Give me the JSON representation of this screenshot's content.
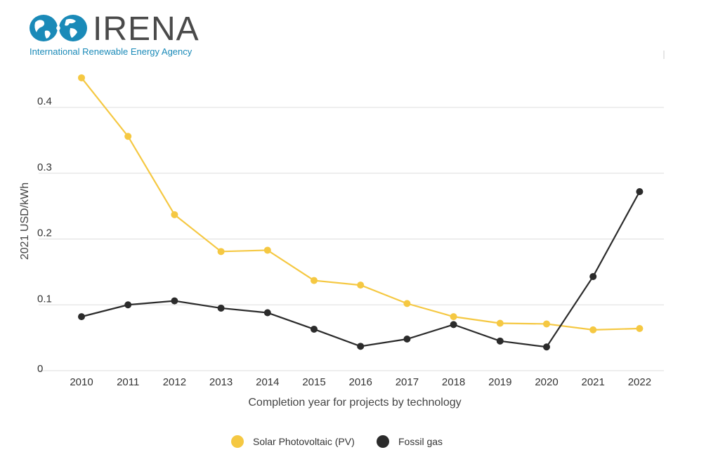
{
  "logo": {
    "name": "IRENA",
    "tagline": "International Renewable Energy Agency",
    "color": "#1a8ab8"
  },
  "chart_data": {
    "type": "line",
    "title": "",
    "xlabel": "Completion year for projects by technology",
    "ylabel": "2021 USD/kWh",
    "ylim": [
      0,
      0.4
    ],
    "yticks": [
      0,
      0.1,
      0.2,
      0.3,
      0.4
    ],
    "ytick_labels": [
      "0",
      "0.1",
      "0.2",
      "0.3",
      "0.4"
    ],
    "grid": true,
    "legend_position": "bottom-center",
    "categories": [
      "2010",
      "2011",
      "2012",
      "2013",
      "2014",
      "2015",
      "2016",
      "2017",
      "2018",
      "2019",
      "2020",
      "2021",
      "2022"
    ],
    "series": [
      {
        "name": "Solar Photovoltaic (PV)",
        "color": "#f5c842",
        "values": [
          0.445,
          0.356,
          0.237,
          0.181,
          0.183,
          0.137,
          0.13,
          0.102,
          0.082,
          0.072,
          0.071,
          0.062,
          0.064
        ]
      },
      {
        "name": "Fossil gas",
        "color": "#2b2b2b",
        "values": [
          0.082,
          0.1,
          0.106,
          0.095,
          0.088,
          0.063,
          0.037,
          0.048,
          0.07,
          0.045,
          0.036,
          0.143,
          0.272
        ]
      }
    ]
  }
}
